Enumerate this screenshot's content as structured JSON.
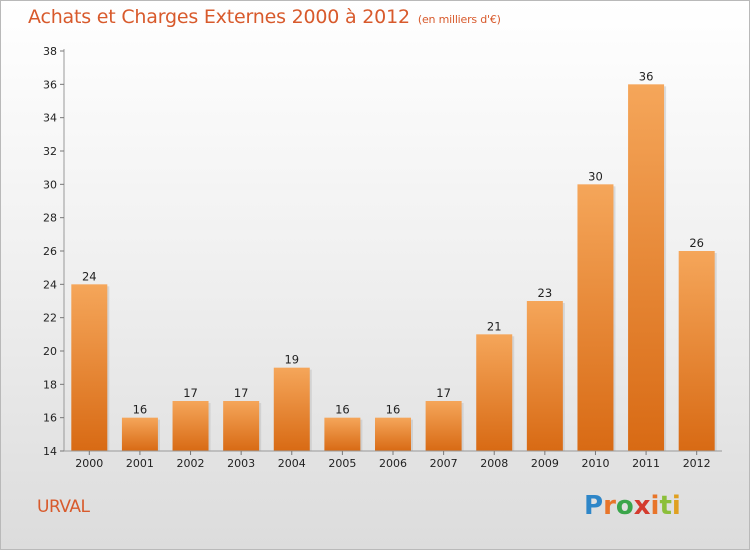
{
  "title": "Achats et Charges Externes 2000 à 2012",
  "subtitle": "(en milliers d'€)",
  "commune": "URVAL",
  "brand": {
    "letters": [
      "P",
      "r",
      "o",
      "x",
      "i",
      "t",
      "i"
    ],
    "colors": [
      "#2e86c8",
      "#e8752a",
      "#3aa54a",
      "#d43b2e",
      "#e8752a",
      "#8cbf3a",
      "#e0a020"
    ]
  },
  "colors": {
    "bar_top": "#f5a65a",
    "bar_bottom": "#d86a14",
    "accent": "#d85a2c"
  },
  "chart_data": {
    "type": "bar",
    "title": "Achats et Charges Externes 2000 à 2012",
    "categories": [
      "2000",
      "2001",
      "2002",
      "2003",
      "2004",
      "2005",
      "2006",
      "2007",
      "2008",
      "2009",
      "2010",
      "2011",
      "2012"
    ],
    "values": [
      24,
      16,
      17,
      17,
      19,
      16,
      16,
      17,
      21,
      23,
      30,
      36,
      26
    ],
    "ylim": [
      14,
      38
    ],
    "yticks": [
      14,
      16,
      18,
      20,
      22,
      24,
      26,
      28,
      30,
      32,
      34,
      36,
      38
    ],
    "xlabel": "",
    "ylabel": "",
    "grid": false
  }
}
